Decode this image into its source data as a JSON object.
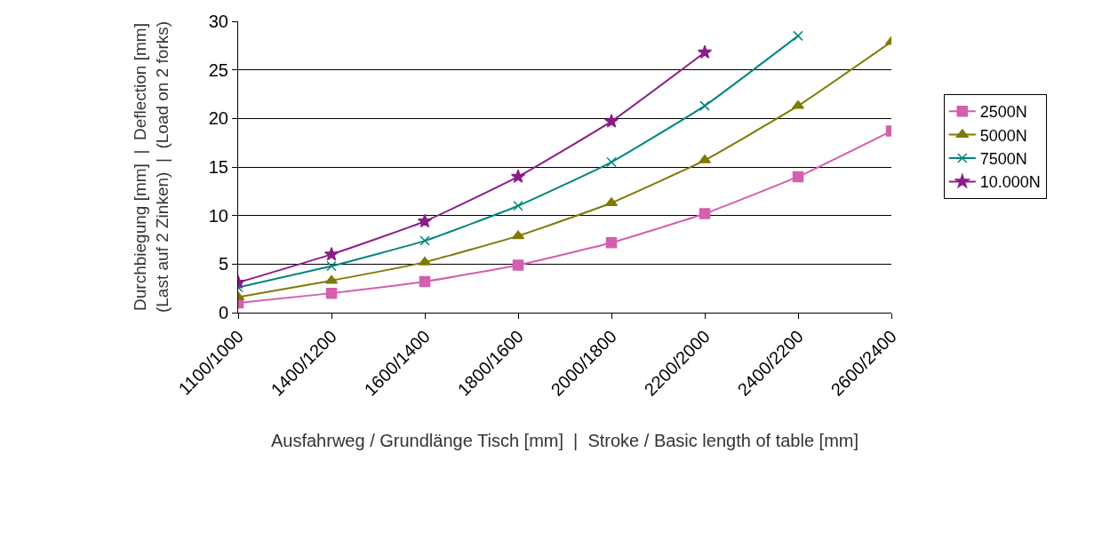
{
  "chart_data": {
    "type": "line",
    "xlabel": "Ausfahrweg / Grundlänge Tisch [mm]  |  Stroke / Basic length of table [mm]",
    "ylabel": "Durchbiegung [mm]  |  Deflection [mm]\n(Last auf 2 Zinken)  |  (Load on 2 forks)",
    "categories": [
      "1100/1000",
      "1400/1200",
      "1600/1400",
      "1800/1600",
      "2000/1800",
      "2200/2000",
      "2400/2200",
      "2600/2400"
    ],
    "series": [
      {
        "name": "2500N",
        "color": "#d35fae",
        "marker": "square",
        "values": [
          1.0,
          2.0,
          3.2,
          4.9,
          7.2,
          10.2,
          14.0,
          18.7
        ]
      },
      {
        "name": "5000N",
        "color": "#7f7a00",
        "marker": "triangle",
        "values": [
          1.6,
          3.3,
          5.2,
          7.9,
          11.3,
          15.7,
          21.3,
          27.9
        ]
      },
      {
        "name": "7500N",
        "color": "#00857f",
        "marker": "cross",
        "values": [
          2.6,
          4.8,
          7.4,
          11.0,
          15.5,
          21.3,
          28.5,
          null
        ]
      },
      {
        "name": "10.000N",
        "color": "#8a1e8a",
        "marker": "star",
        "values": [
          3.1,
          6.0,
          9.4,
          14.0,
          19.7,
          26.8,
          null,
          null
        ]
      }
    ],
    "ylim": [
      0,
      30
    ],
    "yticks": [
      0,
      5,
      10,
      15,
      20,
      25,
      30
    ],
    "grid": "y",
    "legend": "right"
  }
}
